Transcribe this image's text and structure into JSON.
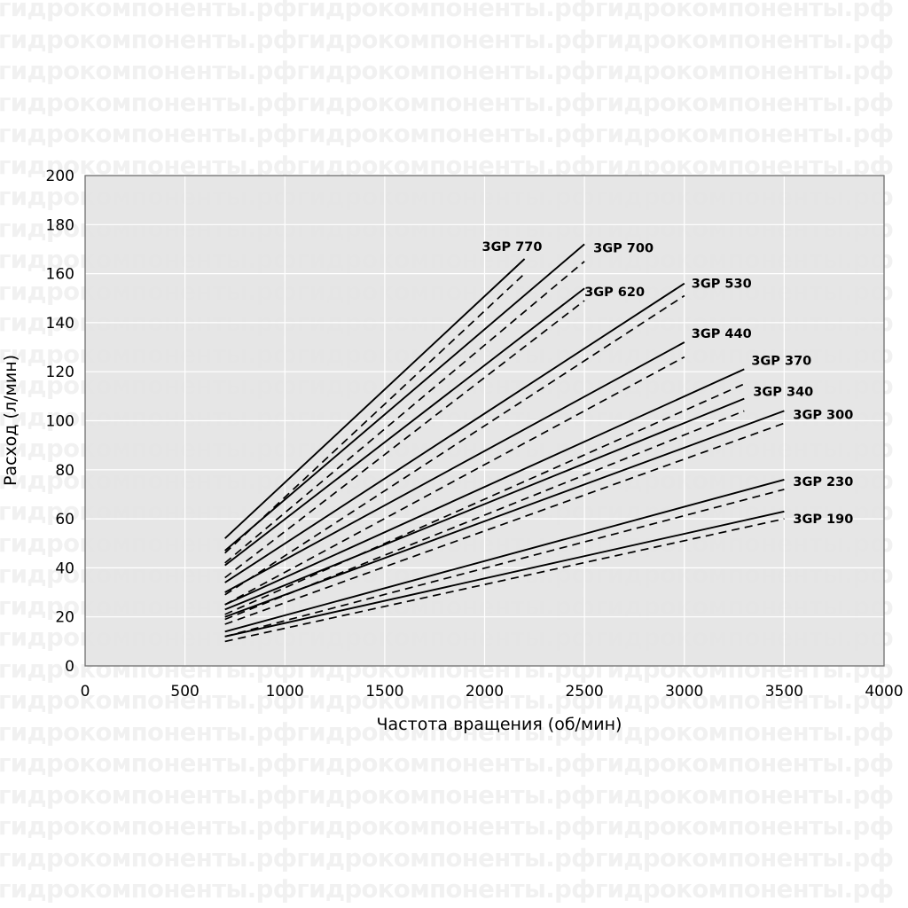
{
  "watermark": {
    "text": "гидрокомпоненты.рфгидрокомпоненты.рфгидрокомпоненты.рф"
  },
  "chart_data": {
    "type": "line",
    "title": "",
    "xlabel": "Частота вращения (об/мин)",
    "ylabel": "Расход (л/мин)",
    "xlim": [
      0,
      4000
    ],
    "ylim": [
      0,
      200
    ],
    "xticks": [
      0,
      500,
      1000,
      1500,
      2000,
      2500,
      3000,
      3500,
      4000
    ],
    "yticks": [
      0,
      20,
      40,
      60,
      80,
      100,
      120,
      140,
      160,
      180,
      200
    ],
    "grid": true,
    "legend": "labels at line ends",
    "colors": {
      "plot_background": "#e4e4e4",
      "grid": "#ffffff",
      "line": "#000000"
    },
    "series": [
      {
        "name": "3GP 770",
        "solid": [
          [
            700,
            52
          ],
          [
            2200,
            166
          ]
        ],
        "dashed": [
          [
            700,
            46
          ],
          [
            2200,
            160
          ]
        ]
      },
      {
        "name": "3GP 700",
        "solid": [
          [
            700,
            47
          ],
          [
            2500,
            172
          ]
        ],
        "dashed": [
          [
            700,
            42
          ],
          [
            2500,
            165
          ]
        ]
      },
      {
        "name": "3GP 620",
        "solid": [
          [
            700,
            41
          ],
          [
            2500,
            154
          ]
        ],
        "dashed": [
          [
            700,
            36
          ],
          [
            2500,
            149
          ]
        ]
      },
      {
        "name": "3GP 530",
        "solid": [
          [
            700,
            34
          ],
          [
            3000,
            156
          ]
        ],
        "dashed": [
          [
            700,
            29
          ],
          [
            3000,
            151
          ]
        ]
      },
      {
        "name": "3GP 440",
        "solid": [
          [
            700,
            30
          ],
          [
            3000,
            132
          ]
        ],
        "dashed": [
          [
            700,
            25
          ],
          [
            3000,
            126
          ]
        ]
      },
      {
        "name": "3GP 370",
        "solid": [
          [
            700,
            25
          ],
          [
            3300,
            121
          ]
        ],
        "dashed": [
          [
            700,
            21
          ],
          [
            3300,
            115
          ]
        ]
      },
      {
        "name": "3GP 340",
        "solid": [
          [
            700,
            23
          ],
          [
            3300,
            109
          ]
        ],
        "dashed": [
          [
            700,
            19
          ],
          [
            3300,
            104
          ]
        ]
      },
      {
        "name": "3GP 300",
        "solid": [
          [
            700,
            20
          ],
          [
            3500,
            104
          ]
        ],
        "dashed": [
          [
            700,
            17
          ],
          [
            3500,
            99
          ]
        ]
      },
      {
        "name": "3GP 230",
        "solid": [
          [
            700,
            14
          ],
          [
            3500,
            76
          ]
        ],
        "dashed": [
          [
            700,
            12
          ],
          [
            3500,
            72
          ]
        ]
      },
      {
        "name": "3GP 190",
        "solid": [
          [
            700,
            12
          ],
          [
            3500,
            63
          ]
        ],
        "dashed": [
          [
            700,
            10
          ],
          [
            3500,
            60
          ]
        ]
      }
    ]
  }
}
